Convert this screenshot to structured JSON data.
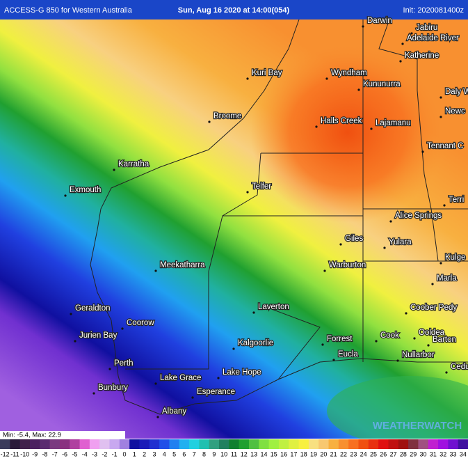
{
  "header": {
    "model": "ACCESS-G 850 for Western Australia",
    "valid": "Sun, Aug 16 2020 at 14:00(054)",
    "init": "Init: 2020081400z"
  },
  "places": [
    "Darwin",
    "Jabiru",
    "Adelaide River",
    "Katherine",
    "Kuri Bay",
    "Wyndham",
    "Kununurra",
    "Daly W",
    "Newc",
    "Broome",
    "Halls Creek",
    "Lajamanu",
    "Tennant C",
    "Karratha",
    "Telfer",
    "Exmouth",
    "Terri",
    "Alice Springs",
    "Giles",
    "Yulara",
    "Kulge",
    "Meekatharra",
    "Warburton",
    "Marla",
    "Laverton",
    "Coober Pedy",
    "Geraldton",
    "Coorow",
    "Jurien Bay",
    "Cook",
    "Ooldea",
    "Forrest",
    "Barton",
    "Kalgoorlie",
    "Eucla",
    "Nullarbor",
    "Perth",
    "Ceduna",
    "Lake Hope",
    "Lake Grace",
    "Bunbury",
    "Esperance",
    "Albany"
  ],
  "minmax": "Min: -5.4, Max: 22.9",
  "watermark": "WEATHERWATCH",
  "scale": {
    "labels": [
      -12,
      -11,
      -10,
      -9,
      -8,
      -7,
      -6,
      -5,
      -4,
      -3,
      -2,
      -1,
      0,
      1,
      2,
      3,
      4,
      5,
      6,
      7,
      8,
      9,
      10,
      11,
      12,
      13,
      14,
      15,
      16,
      17,
      18,
      19,
      20,
      21,
      22,
      23,
      24,
      25,
      26,
      27,
      28,
      29,
      30,
      31,
      32,
      33,
      34
    ],
    "colors": [
      "#3b3b5b",
      "#2a1a3a",
      "#40204a",
      "#4b2060",
      "#5a2b70",
      "#7a3a80",
      "#8a3080",
      "#b040a0",
      "#e060d0",
      "#f0a0f0",
      "#e0c0f0",
      "#c8a8f0",
      "#a080e0",
      "#1010a0",
      "#1a1ab8",
      "#2030d0",
      "#2050e8",
      "#2080f0",
      "#20b0f0",
      "#20d0e0",
      "#20c0b0",
      "#30a080",
      "#208060",
      "#108030",
      "#20a030",
      "#50c040",
      "#80e040",
      "#a0f040",
      "#c0f040",
      "#e0f040",
      "#f8f040",
      "#f8e080",
      "#f8c870",
      "#f8b040",
      "#f89030",
      "#f87020",
      "#f05010",
      "#e83010",
      "#e01010",
      "#c01010",
      "#a01010",
      "#803040",
      "#a05080",
      "#c020d0",
      "#a010e0",
      "#7010d0",
      "#4010a0"
    ]
  }
}
